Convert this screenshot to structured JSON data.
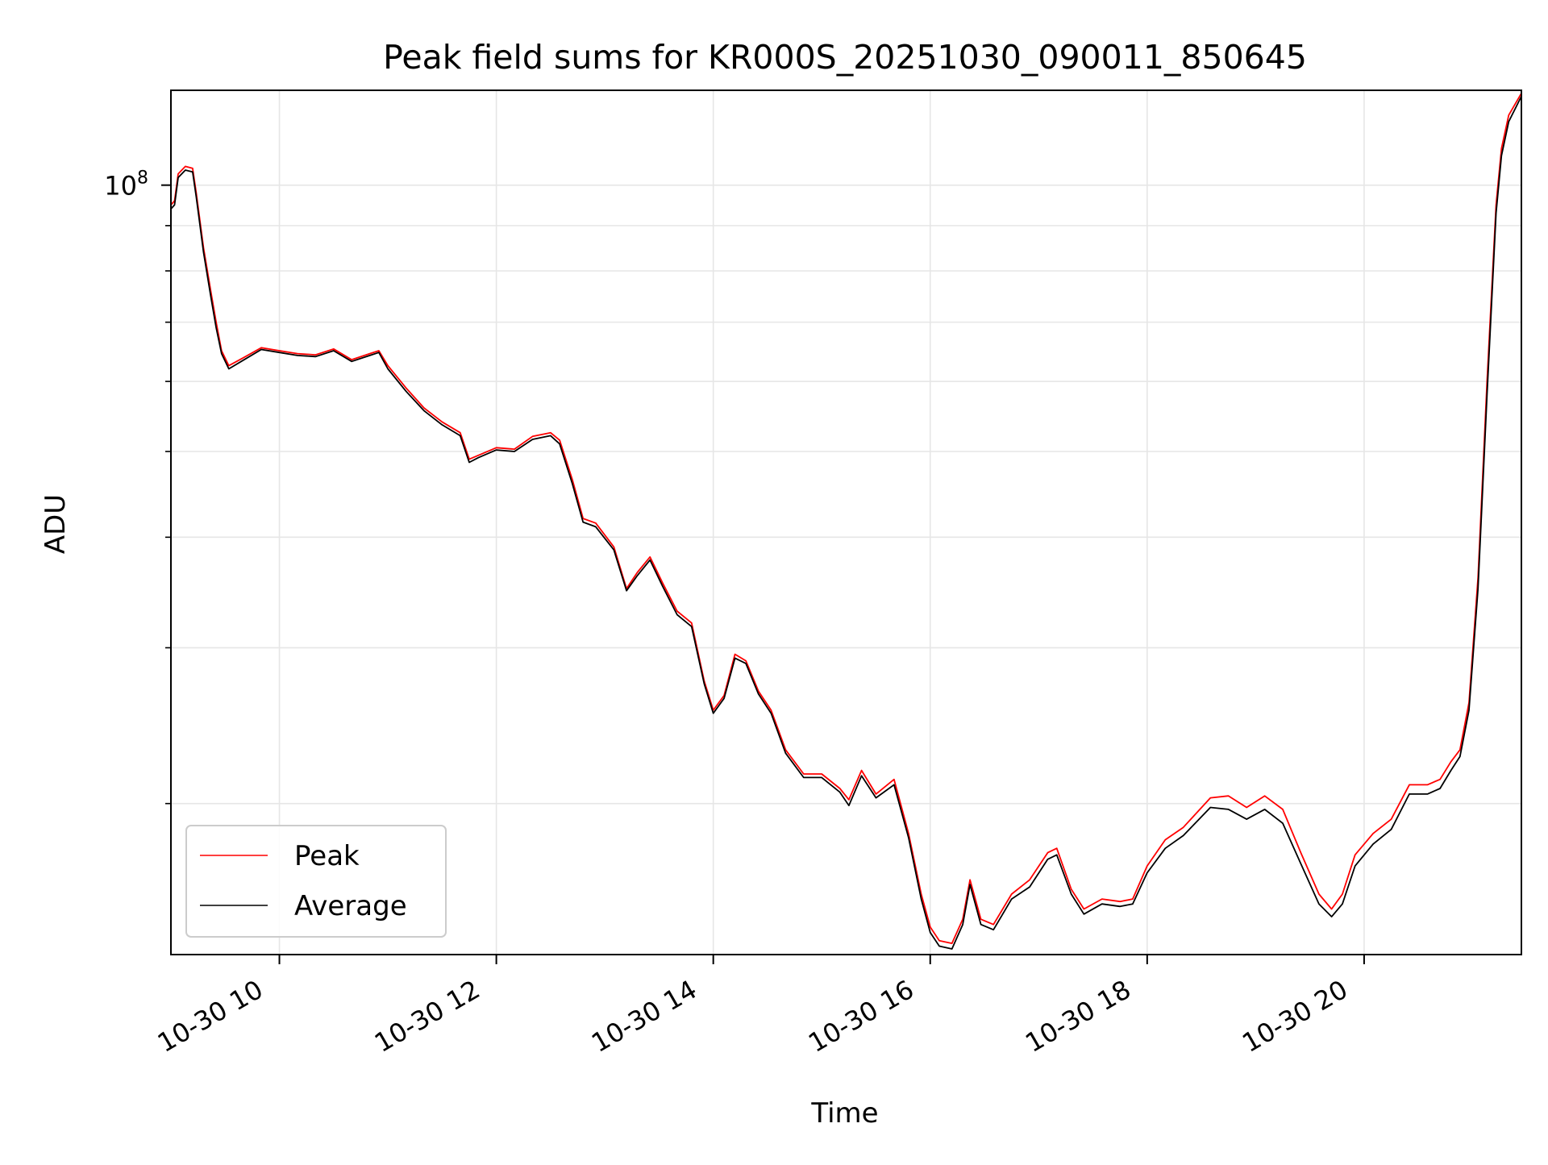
{
  "chart_data": {
    "type": "line",
    "title": "Peak field sums for KR000S_20251030_090011_850645",
    "xlabel": "Time",
    "ylabel": "ADU",
    "y_scale": "log",
    "grid": true,
    "legend_position": "lower-left",
    "xlim": [
      "2025-10-30T09:00",
      "2025-10-30T21:27"
    ],
    "ylim": [
      13500000,
      128000000
    ],
    "x_ticks": [
      "10-30 10",
      "10-30 12",
      "10-30 14",
      "10-30 16",
      "10-30 18",
      "10-30 20"
    ],
    "x_tick_values": [
      "2025-10-30T10:00",
      "2025-10-30T12:00",
      "2025-10-30T14:00",
      "2025-10-30T16:00",
      "2025-10-30T18:00",
      "2025-10-30T20:00"
    ],
    "y_major_tick": {
      "base": "10",
      "exponent": "8",
      "value": 100000000
    },
    "y_minor_ticks": [
      20000000,
      30000000,
      40000000,
      50000000,
      60000000,
      70000000,
      80000000,
      90000000
    ],
    "series": [
      {
        "name": "Peak",
        "color": "#ff0000",
        "points": [
          [
            "2025-10-30T09:00",
            95000000
          ],
          [
            "2025-10-30T09:02",
            96000000
          ],
          [
            "2025-10-30T09:04",
            103000000
          ],
          [
            "2025-10-30T09:08",
            105000000
          ],
          [
            "2025-10-30T09:12",
            104500000
          ],
          [
            "2025-10-30T09:14",
            98000000
          ],
          [
            "2025-10-30T09:18",
            85000000
          ],
          [
            "2025-10-30T09:22",
            76000000
          ],
          [
            "2025-10-30T09:25",
            70000000
          ],
          [
            "2025-10-30T09:28",
            65000000
          ],
          [
            "2025-10-30T09:32",
            62500000
          ],
          [
            "2025-10-30T09:40",
            63800000
          ],
          [
            "2025-10-30T09:50",
            65500000
          ],
          [
            "2025-10-30T10:00",
            65000000
          ],
          [
            "2025-10-30T10:10",
            64500000
          ],
          [
            "2025-10-30T10:20",
            64300000
          ],
          [
            "2025-10-30T10:30",
            65300000
          ],
          [
            "2025-10-30T10:40",
            63500000
          ],
          [
            "2025-10-30T10:50",
            64500000
          ],
          [
            "2025-10-30T10:55",
            65000000
          ],
          [
            "2025-10-30T11:00",
            62500000
          ],
          [
            "2025-10-30T11:10",
            59000000
          ],
          [
            "2025-10-30T11:20",
            56000000
          ],
          [
            "2025-10-30T11:30",
            54000000
          ],
          [
            "2025-10-30T11:40",
            52500000
          ],
          [
            "2025-10-30T11:45",
            49000000
          ],
          [
            "2025-10-30T11:50",
            49500000
          ],
          [
            "2025-10-30T12:00",
            50500000
          ],
          [
            "2025-10-30T12:10",
            50300000
          ],
          [
            "2025-10-30T12:20",
            52000000
          ],
          [
            "2025-10-30T12:30",
            52500000
          ],
          [
            "2025-10-30T12:35",
            51500000
          ],
          [
            "2025-10-30T12:42",
            46500000
          ],
          [
            "2025-10-30T12:48",
            42000000
          ],
          [
            "2025-10-30T12:55",
            41500000
          ],
          [
            "2025-10-30T13:05",
            39000000
          ],
          [
            "2025-10-30T13:12",
            35000000
          ],
          [
            "2025-10-30T13:18",
            36500000
          ],
          [
            "2025-10-30T13:25",
            38000000
          ],
          [
            "2025-10-30T13:32",
            35500000
          ],
          [
            "2025-10-30T13:40",
            33000000
          ],
          [
            "2025-10-30T13:48",
            32000000
          ],
          [
            "2025-10-30T13:55",
            27500000
          ],
          [
            "2025-10-30T14:00",
            25500000
          ],
          [
            "2025-10-30T14:06",
            26500000
          ],
          [
            "2025-10-30T14:12",
            29500000
          ],
          [
            "2025-10-30T14:18",
            29000000
          ],
          [
            "2025-10-30T14:25",
            26800000
          ],
          [
            "2025-10-30T14:32",
            25500000
          ],
          [
            "2025-10-30T14:40",
            23000000
          ],
          [
            "2025-10-30T14:50",
            21600000
          ],
          [
            "2025-10-30T15:00",
            21600000
          ],
          [
            "2025-10-30T15:10",
            20800000
          ],
          [
            "2025-10-30T15:15",
            20200000
          ],
          [
            "2025-10-30T15:22",
            21800000
          ],
          [
            "2025-10-30T15:30",
            20500000
          ],
          [
            "2025-10-30T15:40",
            21300000
          ],
          [
            "2025-10-30T15:48",
            18500000
          ],
          [
            "2025-10-30T15:55",
            15800000
          ],
          [
            "2025-10-30T16:00",
            14500000
          ],
          [
            "2025-10-30T16:05",
            14000000
          ],
          [
            "2025-10-30T16:12",
            13900000
          ],
          [
            "2025-10-30T16:18",
            14800000
          ],
          [
            "2025-10-30T16:22",
            16400000
          ],
          [
            "2025-10-30T16:28",
            14800000
          ],
          [
            "2025-10-30T16:35",
            14600000
          ],
          [
            "2025-10-30T16:45",
            15800000
          ],
          [
            "2025-10-30T16:55",
            16400000
          ],
          [
            "2025-10-30T17:05",
            17600000
          ],
          [
            "2025-10-30T17:10",
            17800000
          ],
          [
            "2025-10-30T17:18",
            16000000
          ],
          [
            "2025-10-30T17:25",
            15200000
          ],
          [
            "2025-10-30T17:35",
            15600000
          ],
          [
            "2025-10-30T17:45",
            15500000
          ],
          [
            "2025-10-30T17:52",
            15600000
          ],
          [
            "2025-10-30T18:00",
            17000000
          ],
          [
            "2025-10-30T18:10",
            18200000
          ],
          [
            "2025-10-30T18:20",
            18800000
          ],
          [
            "2025-10-30T18:35",
            20300000
          ],
          [
            "2025-10-30T18:45",
            20400000
          ],
          [
            "2025-10-30T18:55",
            19800000
          ],
          [
            "2025-10-30T19:05",
            20400000
          ],
          [
            "2025-10-30T19:15",
            19700000
          ],
          [
            "2025-10-30T19:25",
            17600000
          ],
          [
            "2025-10-30T19:35",
            15800000
          ],
          [
            "2025-10-30T19:42",
            15200000
          ],
          [
            "2025-10-30T19:48",
            15800000
          ],
          [
            "2025-10-30T19:55",
            17500000
          ],
          [
            "2025-10-30T20:05",
            18500000
          ],
          [
            "2025-10-30T20:15",
            19200000
          ],
          [
            "2025-10-30T20:25",
            21000000
          ],
          [
            "2025-10-30T20:35",
            21000000
          ],
          [
            "2025-10-30T20:42",
            21300000
          ],
          [
            "2025-10-30T20:48",
            22300000
          ],
          [
            "2025-10-30T20:53",
            23000000
          ],
          [
            "2025-10-30T20:58",
            26000000
          ],
          [
            "2025-10-30T21:03",
            36000000
          ],
          [
            "2025-10-30T21:08",
            60000000
          ],
          [
            "2025-10-30T21:13",
            95000000
          ],
          [
            "2025-10-30T21:16",
            110000000
          ],
          [
            "2025-10-30T21:20",
            120000000
          ],
          [
            "2025-10-30T21:27",
            127000000
          ]
        ]
      },
      {
        "name": "Average",
        "color": "#000000",
        "points": [
          [
            "2025-10-30T09:00",
            94000000
          ],
          [
            "2025-10-30T09:02",
            95000000
          ],
          [
            "2025-10-30T09:04",
            102000000
          ],
          [
            "2025-10-30T09:08",
            104000000
          ],
          [
            "2025-10-30T09:12",
            103500000
          ],
          [
            "2025-10-30T09:14",
            97000000
          ],
          [
            "2025-10-30T09:18",
            84000000
          ],
          [
            "2025-10-30T09:22",
            75000000
          ],
          [
            "2025-10-30T09:25",
            69000000
          ],
          [
            "2025-10-30T09:28",
            64500000
          ],
          [
            "2025-10-30T09:32",
            62000000
          ],
          [
            "2025-10-30T09:40",
            63400000
          ],
          [
            "2025-10-30T09:50",
            65200000
          ],
          [
            "2025-10-30T10:00",
            64700000
          ],
          [
            "2025-10-30T10:10",
            64200000
          ],
          [
            "2025-10-30T10:20",
            64000000
          ],
          [
            "2025-10-30T10:30",
            65000000
          ],
          [
            "2025-10-30T10:40",
            63200000
          ],
          [
            "2025-10-30T10:50",
            64200000
          ],
          [
            "2025-10-30T10:55",
            64700000
          ],
          [
            "2025-10-30T11:00",
            62000000
          ],
          [
            "2025-10-30T11:10",
            58500000
          ],
          [
            "2025-10-30T11:20",
            55600000
          ],
          [
            "2025-10-30T11:30",
            53600000
          ],
          [
            "2025-10-30T11:40",
            52100000
          ],
          [
            "2025-10-30T11:45",
            48600000
          ],
          [
            "2025-10-30T11:50",
            49200000
          ],
          [
            "2025-10-30T12:00",
            50200000
          ],
          [
            "2025-10-30T12:10",
            50000000
          ],
          [
            "2025-10-30T12:20",
            51600000
          ],
          [
            "2025-10-30T12:30",
            52100000
          ],
          [
            "2025-10-30T12:35",
            51000000
          ],
          [
            "2025-10-30T12:42",
            46000000
          ],
          [
            "2025-10-30T12:48",
            41600000
          ],
          [
            "2025-10-30T12:55",
            41100000
          ],
          [
            "2025-10-30T13:05",
            38700000
          ],
          [
            "2025-10-30T13:12",
            34800000
          ],
          [
            "2025-10-30T13:18",
            36200000
          ],
          [
            "2025-10-30T13:25",
            37700000
          ],
          [
            "2025-10-30T13:32",
            35200000
          ],
          [
            "2025-10-30T13:40",
            32700000
          ],
          [
            "2025-10-30T13:48",
            31700000
          ],
          [
            "2025-10-30T13:55",
            27300000
          ],
          [
            "2025-10-30T14:00",
            25300000
          ],
          [
            "2025-10-30T14:06",
            26300000
          ],
          [
            "2025-10-30T14:12",
            29200000
          ],
          [
            "2025-10-30T14:18",
            28800000
          ],
          [
            "2025-10-30T14:25",
            26600000
          ],
          [
            "2025-10-30T14:32",
            25300000
          ],
          [
            "2025-10-30T14:40",
            22800000
          ],
          [
            "2025-10-30T14:50",
            21400000
          ],
          [
            "2025-10-30T15:00",
            21400000
          ],
          [
            "2025-10-30T15:10",
            20600000
          ],
          [
            "2025-10-30T15:15",
            19900000
          ],
          [
            "2025-10-30T15:22",
            21500000
          ],
          [
            "2025-10-30T15:30",
            20300000
          ],
          [
            "2025-10-30T15:40",
            21000000
          ],
          [
            "2025-10-30T15:48",
            18300000
          ],
          [
            "2025-10-30T15:55",
            15600000
          ],
          [
            "2025-10-30T16:00",
            14300000
          ],
          [
            "2025-10-30T16:05",
            13800000
          ],
          [
            "2025-10-30T16:12",
            13700000
          ],
          [
            "2025-10-30T16:18",
            14600000
          ],
          [
            "2025-10-30T16:22",
            16200000
          ],
          [
            "2025-10-30T16:28",
            14600000
          ],
          [
            "2025-10-30T16:35",
            14400000
          ],
          [
            "2025-10-30T16:45",
            15600000
          ],
          [
            "2025-10-30T16:55",
            16100000
          ],
          [
            "2025-10-30T17:05",
            17300000
          ],
          [
            "2025-10-30T17:10",
            17500000
          ],
          [
            "2025-10-30T17:18",
            15800000
          ],
          [
            "2025-10-30T17:25",
            15000000
          ],
          [
            "2025-10-30T17:35",
            15400000
          ],
          [
            "2025-10-30T17:45",
            15300000
          ],
          [
            "2025-10-30T17:52",
            15400000
          ],
          [
            "2025-10-30T18:00",
            16700000
          ],
          [
            "2025-10-30T18:10",
            17800000
          ],
          [
            "2025-10-30T18:20",
            18400000
          ],
          [
            "2025-10-30T18:35",
            19800000
          ],
          [
            "2025-10-30T18:45",
            19700000
          ],
          [
            "2025-10-30T18:55",
            19200000
          ],
          [
            "2025-10-30T19:05",
            19700000
          ],
          [
            "2025-10-30T19:15",
            19000000
          ],
          [
            "2025-10-30T19:25",
            17100000
          ],
          [
            "2025-10-30T19:35",
            15400000
          ],
          [
            "2025-10-30T19:42",
            14900000
          ],
          [
            "2025-10-30T19:48",
            15400000
          ],
          [
            "2025-10-30T19:55",
            17000000
          ],
          [
            "2025-10-30T20:05",
            18000000
          ],
          [
            "2025-10-30T20:15",
            18700000
          ],
          [
            "2025-10-30T20:25",
            20500000
          ],
          [
            "2025-10-30T20:35",
            20500000
          ],
          [
            "2025-10-30T20:42",
            20800000
          ],
          [
            "2025-10-30T20:48",
            21800000
          ],
          [
            "2025-10-30T20:53",
            22600000
          ],
          [
            "2025-10-30T20:58",
            25500000
          ],
          [
            "2025-10-30T21:03",
            35000000
          ],
          [
            "2025-10-30T21:08",
            58000000
          ],
          [
            "2025-10-30T21:13",
            93000000
          ],
          [
            "2025-10-30T21:16",
            108000000
          ],
          [
            "2025-10-30T21:20",
            118000000
          ],
          [
            "2025-10-30T21:27",
            126000000
          ]
        ]
      }
    ]
  }
}
